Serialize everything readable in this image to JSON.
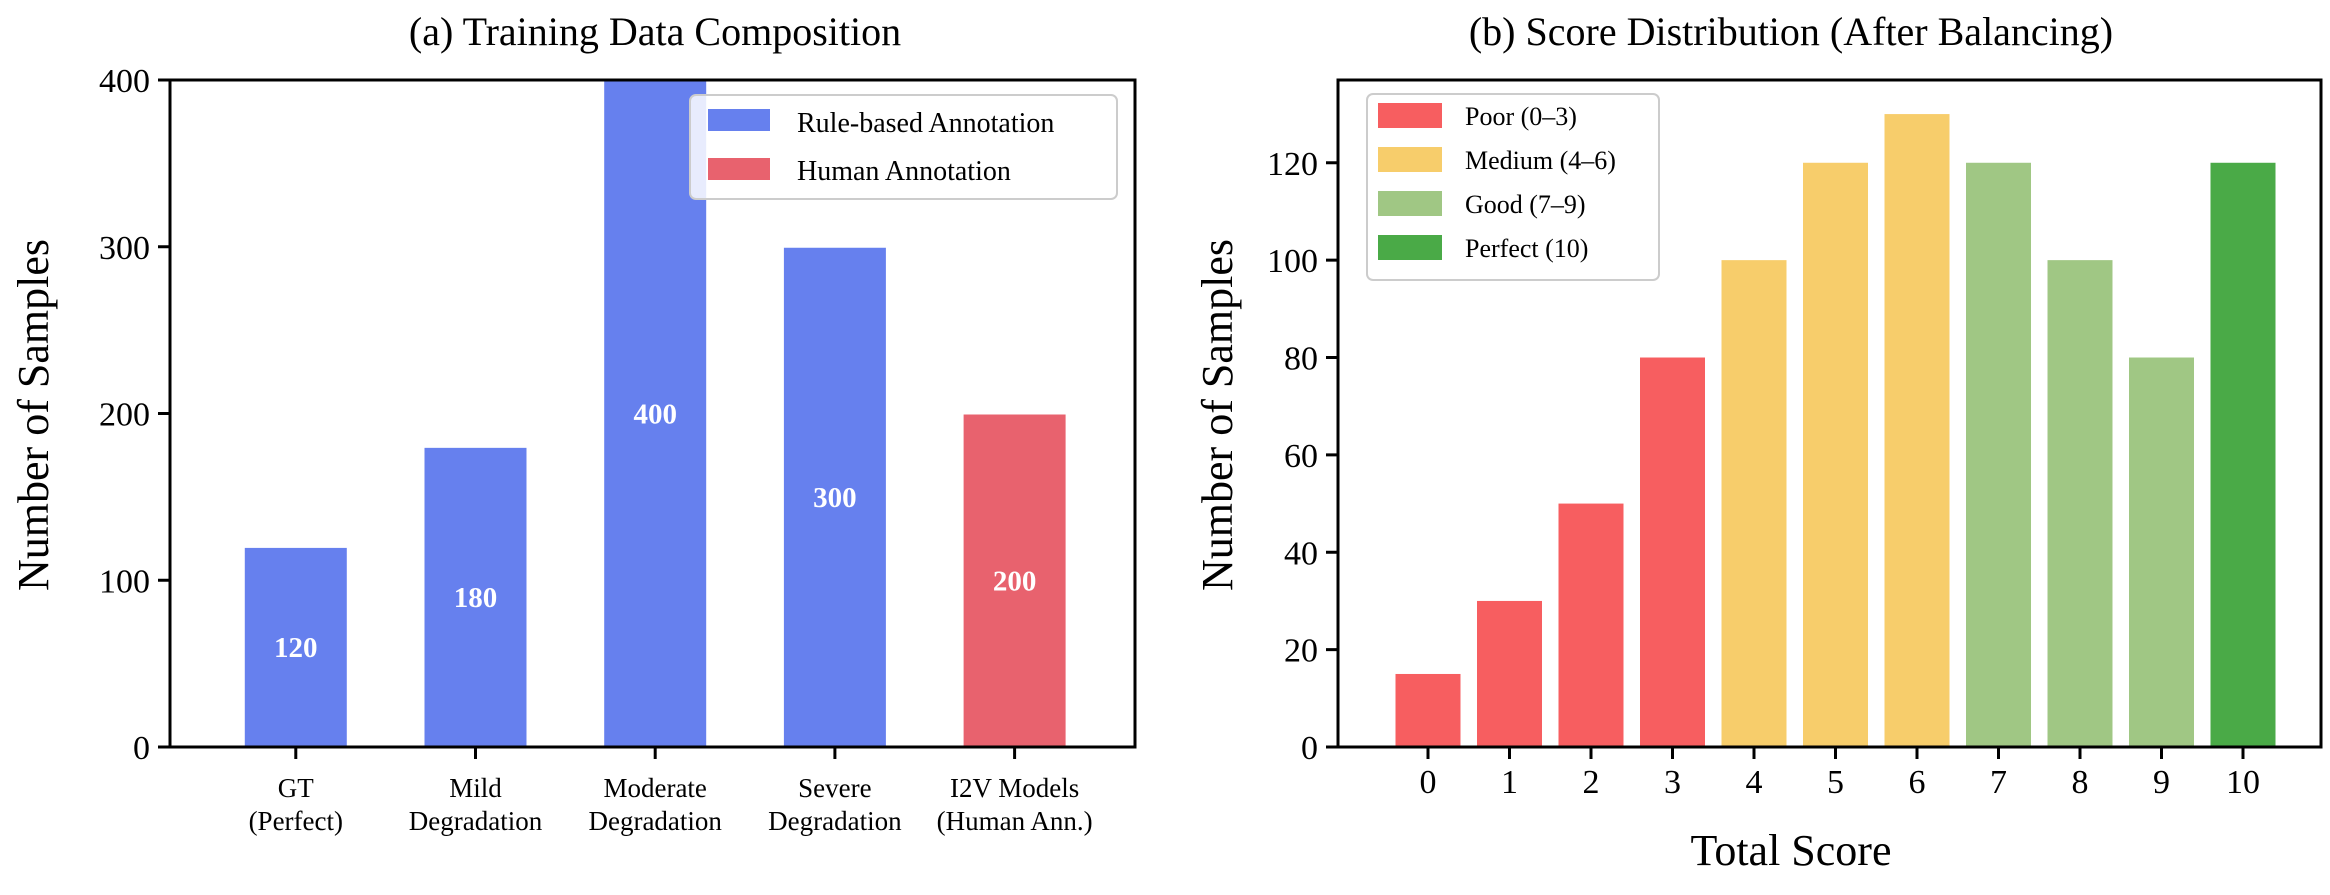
{
  "chart_data": [
    {
      "type": "bar",
      "title": "(a) Training Data Composition",
      "xlabel": "",
      "ylabel": "Number of Samples",
      "ylim": [
        0,
        400
      ],
      "yticks": [
        0,
        100,
        200,
        300,
        400
      ],
      "categories": [
        [
          "GT",
          "(Perfect)"
        ],
        [
          "Mild",
          "Degradation"
        ],
        [
          "Moderate",
          "Degradation"
        ],
        [
          "Severe",
          "Degradation"
        ],
        [
          "I2V Models",
          "(Human Ann.)"
        ]
      ],
      "values": [
        120,
        180,
        400,
        300,
        200
      ],
      "bar_series": [
        0,
        0,
        0,
        0,
        1
      ],
      "series": [
        {
          "name": "Rule-based Annotation",
          "color": "#6680ee"
        },
        {
          "name": "Human Annotation",
          "color": "#e8626e"
        }
      ],
      "data_labels": [
        "120",
        "180",
        "400",
        "300",
        "200"
      ],
      "legend_position": "top-right",
      "grid": false
    },
    {
      "type": "bar",
      "title": "(b) Score Distribution (After Balancing)",
      "xlabel": "Total Score",
      "ylabel": "Number of Samples",
      "ylim": [
        0,
        137
      ],
      "yticks": [
        0,
        20,
        40,
        60,
        80,
        100,
        120
      ],
      "categories": [
        "0",
        "1",
        "2",
        "3",
        "4",
        "5",
        "6",
        "7",
        "8",
        "9",
        "10"
      ],
      "values": [
        15,
        30,
        50,
        80,
        100,
        120,
        130,
        120,
        100,
        80,
        120
      ],
      "bar_group": [
        0,
        0,
        0,
        0,
        1,
        1,
        1,
        2,
        2,
        2,
        3
      ],
      "groups": [
        {
          "name": "Poor (0–3)",
          "color": "#f75e60"
        },
        {
          "name": "Medium (4–6)",
          "color": "#f7cd6b"
        },
        {
          "name": "Good (7–9)",
          "color": "#a0c784"
        },
        {
          "name": "Perfect (10)",
          "color": "#4aaa47"
        }
      ],
      "legend_position": "top-left",
      "grid": false
    }
  ]
}
